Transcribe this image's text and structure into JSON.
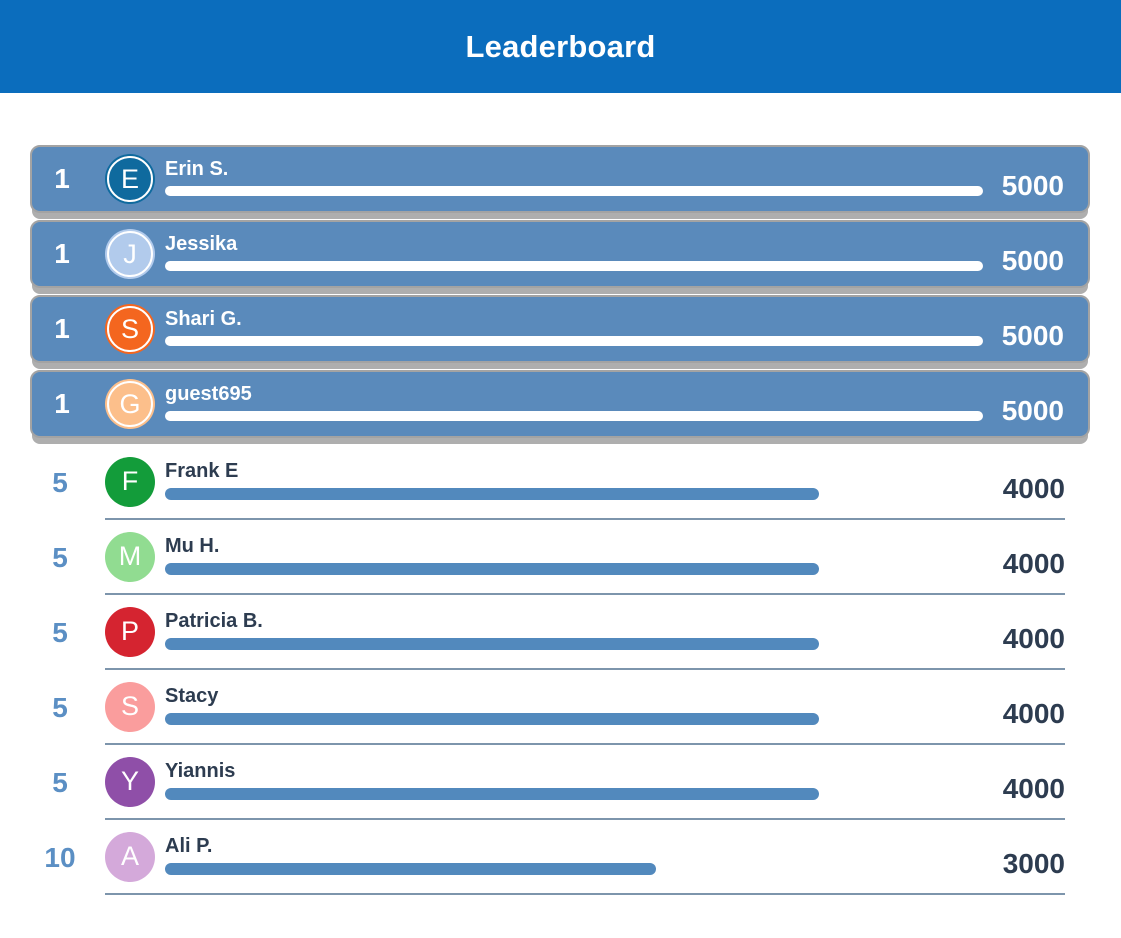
{
  "header": {
    "title": "Leaderboard"
  },
  "colors": {
    "header_bg": "#0b6dbd",
    "highlight_row_bg": "#5a8abb",
    "highlight_row_border": "#a3a3a3",
    "bar_blue": "#5289bd",
    "rank_blue": "#5b8fc4",
    "text_dark": "#2d3c50",
    "separator": "#7d95ac",
    "highlight_text": "#ffffff"
  },
  "leaderboard": {
    "max_score": 5000,
    "rows": [
      {
        "rank": "1",
        "initial": "E",
        "name": "Erin S.",
        "score": "5000",
        "pct": 100,
        "avatar_color": "#0f6a9e",
        "highlighted": true
      },
      {
        "rank": "1",
        "initial": "J",
        "name": "Jessika",
        "score": "5000",
        "pct": 100,
        "avatar_color": "#b2cbec",
        "highlighted": true
      },
      {
        "rank": "1",
        "initial": "S",
        "name": "Shari G.",
        "score": "5000",
        "pct": 100,
        "avatar_color": "#f4661f",
        "highlighted": true
      },
      {
        "rank": "1",
        "initial": "G",
        "name": "guest695",
        "score": "5000",
        "pct": 100,
        "avatar_color": "#fcbf8b",
        "highlighted": true
      },
      {
        "rank": "5",
        "initial": "F",
        "name": "Frank E",
        "score": "4000",
        "pct": 80,
        "avatar_color": "#139c3a",
        "highlighted": false
      },
      {
        "rank": "5",
        "initial": "M",
        "name": "Mu H.",
        "score": "4000",
        "pct": 80,
        "avatar_color": "#91dc91",
        "highlighted": false
      },
      {
        "rank": "5",
        "initial": "P",
        "name": "Patricia B.",
        "score": "4000",
        "pct": 80,
        "avatar_color": "#d52430",
        "highlighted": false
      },
      {
        "rank": "5",
        "initial": "S",
        "name": "Stacy",
        "score": "4000",
        "pct": 80,
        "avatar_color": "#fa9d9d",
        "highlighted": false
      },
      {
        "rank": "5",
        "initial": "Y",
        "name": "Yiannis",
        "score": "4000",
        "pct": 80,
        "avatar_color": "#8f4fa8",
        "highlighted": false
      },
      {
        "rank": "10",
        "initial": "A",
        "name": "Ali P.",
        "score": "3000",
        "pct": 60,
        "avatar_color": "#d4a9da",
        "highlighted": false
      }
    ]
  }
}
